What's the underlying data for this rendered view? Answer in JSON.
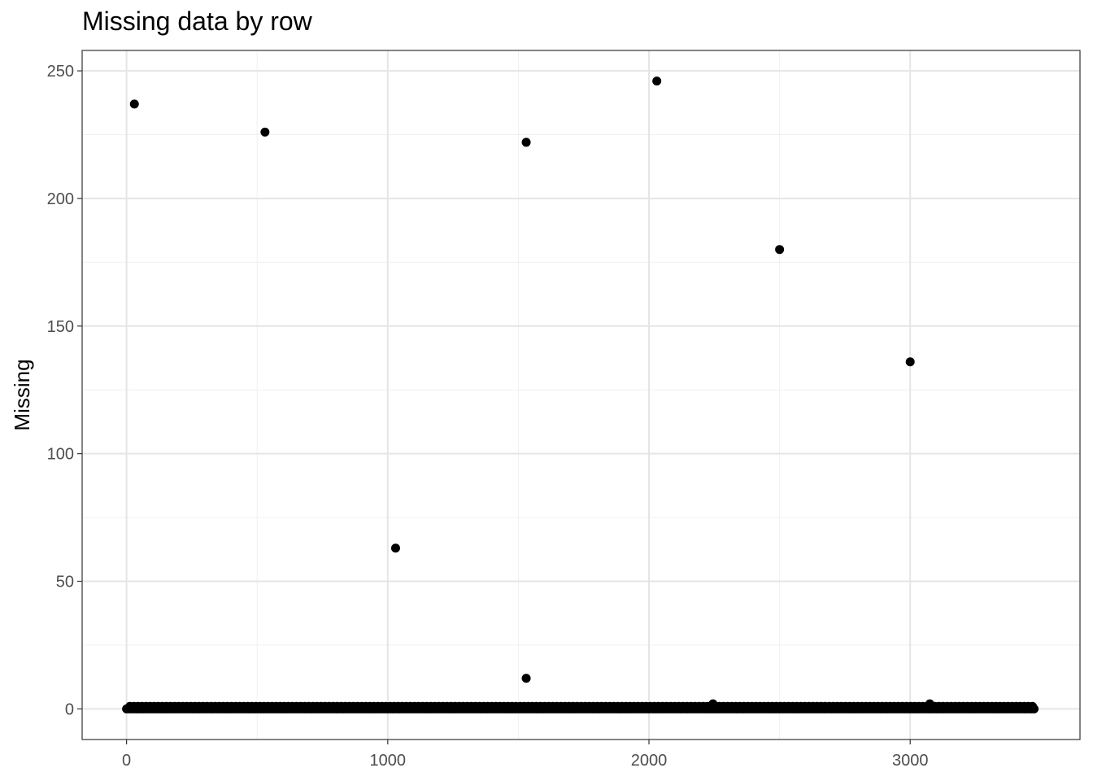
{
  "chart_data": {
    "type": "scatter",
    "title": "Missing data by row",
    "xlabel": "",
    "ylabel": "Missing",
    "xlim": [
      -170,
      3650
    ],
    "ylim": [
      -12,
      258
    ],
    "x_ticks": [
      0,
      1000,
      2000,
      3000
    ],
    "x_tick_labels": [
      "0",
      "1000",
      "2000",
      "3000"
    ],
    "y_ticks": [
      0,
      50,
      100,
      150,
      200,
      250
    ],
    "y_tick_labels": [
      "0",
      "50",
      "100",
      "150",
      "200",
      "250"
    ],
    "grid": true,
    "baseline": {
      "x_start": 0,
      "x_end": 3475,
      "y": 0,
      "note": "dense points at 0-1 across all rows"
    },
    "points": [
      {
        "x": 30,
        "y": 237
      },
      {
        "x": 530,
        "y": 226
      },
      {
        "x": 1030,
        "y": 63
      },
      {
        "x": 1530,
        "y": 222
      },
      {
        "x": 1530,
        "y": 12
      },
      {
        "x": 2030,
        "y": 246
      },
      {
        "x": 2245,
        "y": 2
      },
      {
        "x": 2500,
        "y": 180
      },
      {
        "x": 3000,
        "y": 136
      },
      {
        "x": 3075,
        "y": 2
      }
    ]
  },
  "colors": {
    "point": "#000000",
    "grid_major": "#e5e5e5",
    "grid_minor": "#f0f0f0",
    "panel_border": "#333333"
  }
}
